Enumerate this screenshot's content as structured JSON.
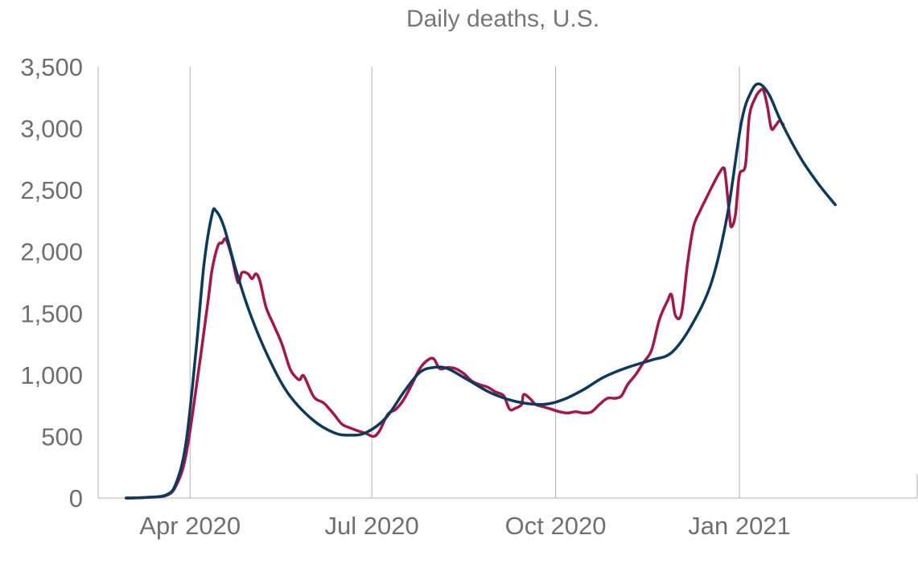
{
  "chart_data": {
    "type": "line",
    "title": "Daily deaths, U.S.",
    "xlabel": "",
    "ylabel": "",
    "x_tick_labels": [
      "Apr 2020",
      "Jul 2020",
      "Oct 2020",
      "Jan 2021"
    ],
    "y_tick_labels": [
      "0",
      "500",
      "1,000",
      "1,500",
      "2,000",
      "2,500",
      "3,000",
      "3,500"
    ],
    "y_ticks": [
      0,
      500,
      1000,
      1500,
      2000,
      2500,
      3000,
      3500
    ],
    "ylim": [
      0,
      3500
    ],
    "x_tick_dates": [
      "2020-04-01",
      "2020-07-01",
      "2020-10-01",
      "2021-01-01"
    ],
    "x_range": [
      "2020-02-15",
      "2021-03-31"
    ],
    "grid": "vertical",
    "legend": "none",
    "series": [
      {
        "color": "#a3174a",
        "points": [
          [
            "2020-02-29",
            0
          ],
          [
            "2020-03-10",
            5
          ],
          [
            "2020-03-20",
            20
          ],
          [
            "2020-03-25",
            100
          ],
          [
            "2020-03-30",
            350
          ],
          [
            "2020-04-05",
            1000
          ],
          [
            "2020-04-10",
            1600
          ],
          [
            "2020-04-12",
            1850
          ],
          [
            "2020-04-15",
            2050
          ],
          [
            "2020-04-17",
            2070
          ],
          [
            "2020-04-19",
            2100
          ],
          [
            "2020-04-22",
            1950
          ],
          [
            "2020-04-25",
            1750
          ],
          [
            "2020-04-27",
            1830
          ],
          [
            "2020-04-30",
            1820
          ],
          [
            "2020-05-02",
            1780
          ],
          [
            "2020-05-04",
            1820
          ],
          [
            "2020-05-06",
            1760
          ],
          [
            "2020-05-09",
            1550
          ],
          [
            "2020-05-13",
            1400
          ],
          [
            "2020-05-17",
            1250
          ],
          [
            "2020-05-21",
            1050
          ],
          [
            "2020-05-24",
            980
          ],
          [
            "2020-05-26",
            960
          ],
          [
            "2020-05-28",
            990
          ],
          [
            "2020-06-02",
            820
          ],
          [
            "2020-06-07",
            770
          ],
          [
            "2020-06-12",
            680
          ],
          [
            "2020-06-16",
            600
          ],
          [
            "2020-06-20",
            570
          ],
          [
            "2020-06-24",
            545
          ],
          [
            "2020-06-28",
            525
          ],
          [
            "2020-07-02",
            500
          ],
          [
            "2020-07-05",
            550
          ],
          [
            "2020-07-09",
            680
          ],
          [
            "2020-07-13",
            720
          ],
          [
            "2020-07-17",
            800
          ],
          [
            "2020-07-21",
            920
          ],
          [
            "2020-07-25",
            1050
          ],
          [
            "2020-07-29",
            1120
          ],
          [
            "2020-08-01",
            1130
          ],
          [
            "2020-08-04",
            1050
          ],
          [
            "2020-08-08",
            1060
          ],
          [
            "2020-08-12",
            1050
          ],
          [
            "2020-08-16",
            1010
          ],
          [
            "2020-08-20",
            950
          ],
          [
            "2020-08-24",
            920
          ],
          [
            "2020-08-28",
            900
          ],
          [
            "2020-09-01",
            860
          ],
          [
            "2020-09-05",
            830
          ],
          [
            "2020-09-08",
            720
          ],
          [
            "2020-09-11",
            730
          ],
          [
            "2020-09-14",
            760
          ],
          [
            "2020-09-15",
            840
          ],
          [
            "2020-09-18",
            810
          ],
          [
            "2020-09-21",
            760
          ],
          [
            "2020-09-25",
            740
          ],
          [
            "2020-09-29",
            720
          ],
          [
            "2020-10-03",
            700
          ],
          [
            "2020-10-07",
            690
          ],
          [
            "2020-10-11",
            700
          ],
          [
            "2020-10-15",
            690
          ],
          [
            "2020-10-19",
            700
          ],
          [
            "2020-10-23",
            760
          ],
          [
            "2020-10-27",
            810
          ],
          [
            "2020-10-31",
            810
          ],
          [
            "2020-11-03",
            830
          ],
          [
            "2020-11-06",
            920
          ],
          [
            "2020-11-10",
            1000
          ],
          [
            "2020-11-14",
            1100
          ],
          [
            "2020-11-18",
            1200
          ],
          [
            "2020-11-22",
            1450
          ],
          [
            "2020-11-26",
            1600
          ],
          [
            "2020-11-28",
            1650
          ],
          [
            "2020-11-30",
            1480
          ],
          [
            "2020-12-03",
            1500
          ],
          [
            "2020-12-06",
            1900
          ],
          [
            "2020-12-09",
            2200
          ],
          [
            "2020-12-12",
            2320
          ],
          [
            "2020-12-15",
            2420
          ],
          [
            "2020-12-19",
            2550
          ],
          [
            "2020-12-22",
            2640
          ],
          [
            "2020-12-24",
            2680
          ],
          [
            "2020-12-25",
            2620
          ],
          [
            "2020-12-27",
            2300
          ],
          [
            "2020-12-28",
            2200
          ],
          [
            "2020-12-30",
            2300
          ],
          [
            "2021-01-01",
            2620
          ],
          [
            "2021-01-04",
            2700
          ],
          [
            "2021-01-06",
            3100
          ],
          [
            "2021-01-09",
            3250
          ],
          [
            "2021-01-11",
            3300
          ],
          [
            "2021-01-13",
            3310
          ],
          [
            "2021-01-15",
            3180
          ],
          [
            "2021-01-17",
            3000
          ],
          [
            "2021-01-19",
            3020
          ],
          [
            "2021-01-21",
            3060
          ],
          [
            "2021-01-23",
            3030
          ]
        ]
      },
      {
        "color": "#0d3a5c",
        "points": [
          [
            "2020-02-29",
            0
          ],
          [
            "2020-03-10",
            5
          ],
          [
            "2020-03-20",
            25
          ],
          [
            "2020-03-25",
            120
          ],
          [
            "2020-03-30",
            450
          ],
          [
            "2020-04-04",
            1200
          ],
          [
            "2020-04-08",
            1900
          ],
          [
            "2020-04-12",
            2300
          ],
          [
            "2020-04-14",
            2330
          ],
          [
            "2020-04-18",
            2200
          ],
          [
            "2020-04-24",
            1850
          ],
          [
            "2020-05-01",
            1500
          ],
          [
            "2020-05-10",
            1150
          ],
          [
            "2020-05-20",
            850
          ],
          [
            "2020-06-01",
            640
          ],
          [
            "2020-06-12",
            530
          ],
          [
            "2020-06-20",
            510
          ],
          [
            "2020-06-28",
            530
          ],
          [
            "2020-07-08",
            650
          ],
          [
            "2020-07-17",
            860
          ],
          [
            "2020-07-25",
            1020
          ],
          [
            "2020-08-01",
            1060
          ],
          [
            "2020-08-08",
            1050
          ],
          [
            "2020-08-18",
            960
          ],
          [
            "2020-08-30",
            850
          ],
          [
            "2020-09-12",
            780
          ],
          [
            "2020-09-25",
            760
          ],
          [
            "2020-10-05",
            800
          ],
          [
            "2020-10-15",
            880
          ],
          [
            "2020-10-25",
            980
          ],
          [
            "2020-11-06",
            1060
          ],
          [
            "2020-11-18",
            1120
          ],
          [
            "2020-11-28",
            1180
          ],
          [
            "2020-12-08",
            1400
          ],
          [
            "2020-12-18",
            1750
          ],
          [
            "2020-12-26",
            2300
          ],
          [
            "2021-01-02",
            3050
          ],
          [
            "2021-01-07",
            3300
          ],
          [
            "2021-01-11",
            3360
          ],
          [
            "2021-01-16",
            3270
          ],
          [
            "2021-01-22",
            3050
          ],
          [
            "2021-02-01",
            2750
          ],
          [
            "2021-02-10",
            2540
          ],
          [
            "2021-02-18",
            2380
          ]
        ]
      }
    ]
  }
}
